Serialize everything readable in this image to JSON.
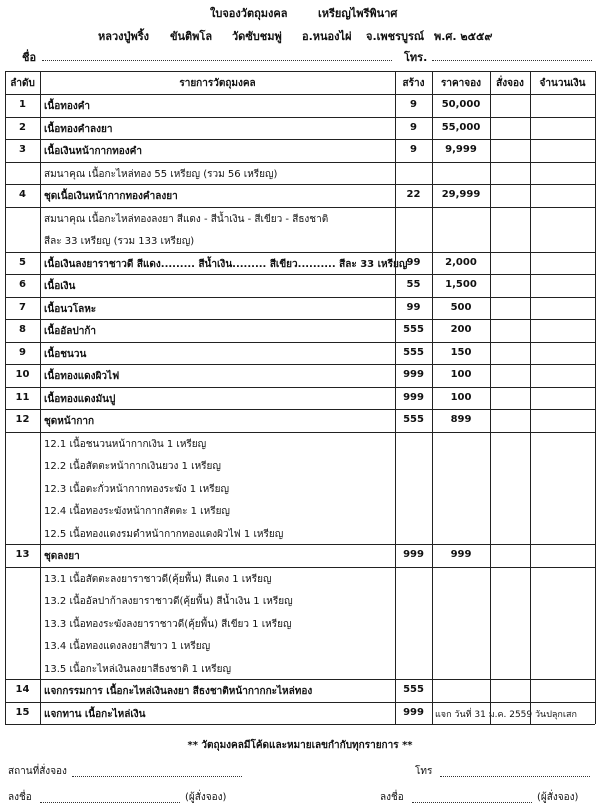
{
  "header": {
    "title": "ใบจองวัตถุมงคล",
    "subtitle": "เหรียญไพรีพินาศ",
    "info": [
      "หลวงปู่พริ้ง",
      "ขันติพโล",
      "วัดซับชมพู่",
      "อ.หนองไผ่",
      "จ.เพชรบูรณ์",
      "พ.ศ. ๒๕๕๙"
    ],
    "name_label": "ชื่อ",
    "phone_label": "โทร."
  },
  "table": {
    "columns": [
      "ลำดับ",
      "รายการวัตถุมงคล",
      "สร้าง",
      "ราคาจอง",
      "สั่งจอง",
      "จำนวนเงิน"
    ],
    "rows": [
      {
        "no": "1",
        "item": "เนื้อทองคำ",
        "made": "9",
        "price": "50,000"
      },
      {
        "no": "2",
        "item": "เนื้อทองคำลงยา",
        "made": "9",
        "price": "55,000"
      },
      {
        "no": "3",
        "item": "เนื้อเงินหน้ากากทองคำ",
        "made": "9",
        "price": "9,999",
        "notes": [
          "สมนาคุณ เนื้อกะไหล่ทอง 55 เหรียญ (รวม 56 เหรียญ)"
        ]
      },
      {
        "no": "4",
        "item": "ชุดเนื้อเงินหน้ากากทองคำลงยา",
        "made": "22",
        "price": "29,999",
        "notes": [
          "สมนาคุณ เนื้อกะไหล่ทองลงยา สีแดง - สีน้ำเงิน - สีเขียว - สีธงชาติ",
          "สีละ 33 เหรียญ (รวม 133 เหรียญ)"
        ]
      },
      {
        "no": "5",
        "item": "เนื้อเงินลงยาราชาวดี สีแดง.........  สีน้ำเงิน.........  สีเขียว..........  สีละ 33 เหรียญ",
        "made": "99",
        "price": "2,000"
      },
      {
        "no": "6",
        "item": "เนื้อเงิน",
        "made": "55",
        "price": "1,500"
      },
      {
        "no": "7",
        "item": "เนื้อนวโลหะ",
        "made": "99",
        "price": "500"
      },
      {
        "no": "8",
        "item": "เนื้ออัลปาก้า",
        "made": "555",
        "price": "200"
      },
      {
        "no": "9",
        "item": "เนื้อชนวน",
        "made": "555",
        "price": "150"
      },
      {
        "no": "10",
        "item": "เนื้อทองแดงผิวไฟ",
        "made": "999",
        "price": "100"
      },
      {
        "no": "11",
        "item": "เนื้อทองแดงมันปู",
        "made": "999",
        "price": "100"
      },
      {
        "no": "12",
        "item": "ชุดหน้ากาก",
        "made": "555",
        "price": "899",
        "notes": [
          "12.1 เนื้อชนวนหน้ากากเงิน 1 เหรียญ",
          "12.2 เนื้อสัตตะหน้ากากเงินยวง 1 เหรียญ",
          "12.3 เนื้อตะกั่วหน้ากากทองระฆัง 1 เหรียญ",
          "12.4 เนื้อทองระฆังหน้ากากสัตตะ 1 เหรียญ",
          "12.5 เนื้อทองแดงรมดำหน้ากากทองแดงผิวไฟ 1 เหรียญ"
        ]
      },
      {
        "no": "13",
        "item": "ชุดลงยา",
        "made": "999",
        "price": "999",
        "notes": [
          "13.1 เนื้อสัตตะลงยาราชาวดี(คุ้ยพื้น) สีแดง 1 เหรียญ",
          "13.2 เนื้ออัลปาก้าลงยาราชาวดี(คุ้ยพื้น) สีน้ำเงิน 1 เหรียญ",
          "13.3 เนื้อทองระฆังลงยาราชาวดี(คุ้ยพื้น) สีเขียว 1 เหรียญ",
          "13.4 เนื้อทองแดงลงยาสีขาว 1 เหรียญ",
          "13.5 เนื้อกะไหล่เงินลงยาสีธงชาติ 1 เหรียญ"
        ]
      },
      {
        "no": "14",
        "item": "แจกกรรมการ เนื้อกะไหล่เงินลงยา สีธงชาติหน้ากากกะไหล่ทอง",
        "made": "555"
      },
      {
        "no": "15",
        "item": "แจกทาน เนื้อกะไหล่เงิน",
        "made": "999",
        "remark": "แจก วันที่ 31 ม.ค. 2559 วันปลุกเสก"
      }
    ]
  },
  "footer": {
    "note": "** วัตถุมงคลมีโค้ดและหมายเลขกำกับทุกรายการ **",
    "place_label": "สถานที่สั่งจอง",
    "phone_label": "โทร",
    "sign_label": "ลงชื่อ",
    "signer": "(ผู้สั่งจอง)"
  }
}
